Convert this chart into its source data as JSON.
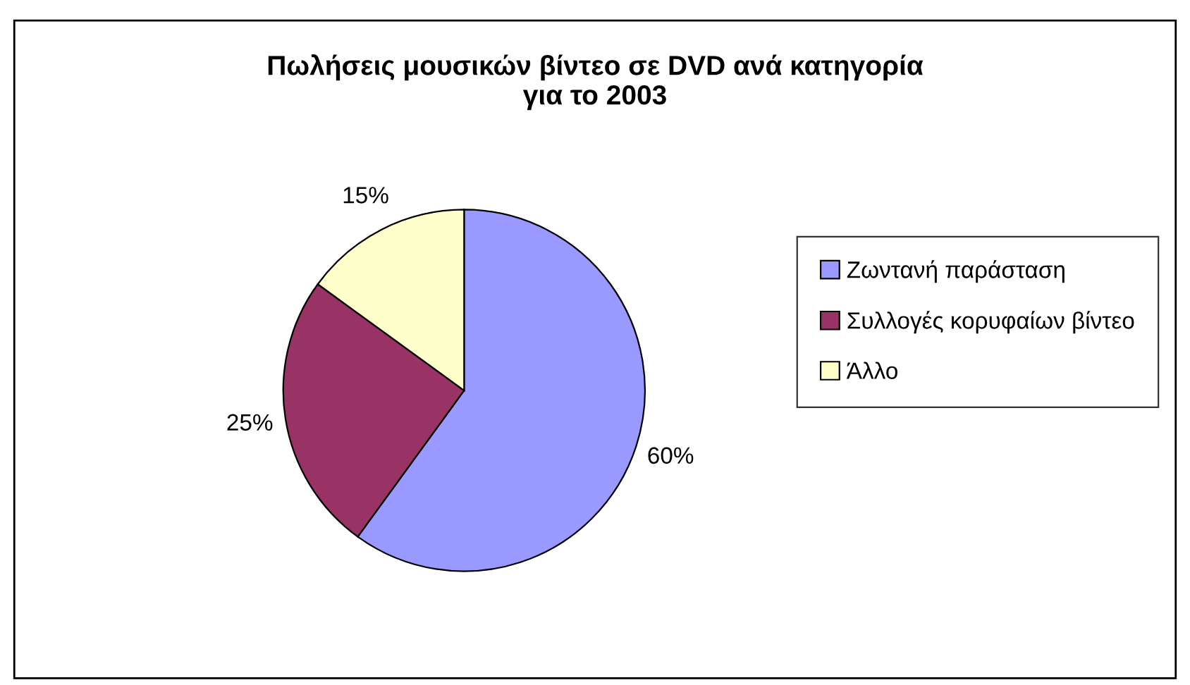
{
  "chart_data": {
    "type": "pie",
    "title": "Πωλήσεις μουσικών βίντεο σε DVD ανά κατηγορία\nγια το 2003",
    "categories": [
      "Ζωντανή παράσταση",
      "Συλλογές κορυφαίων βίντεο",
      "Άλλο"
    ],
    "values": [
      60,
      25,
      15
    ],
    "colors": [
      "#9999ff",
      "#993366",
      "#ffffcc"
    ],
    "value_labels": [
      "60%",
      "25%",
      "15%"
    ],
    "legend": "right"
  }
}
